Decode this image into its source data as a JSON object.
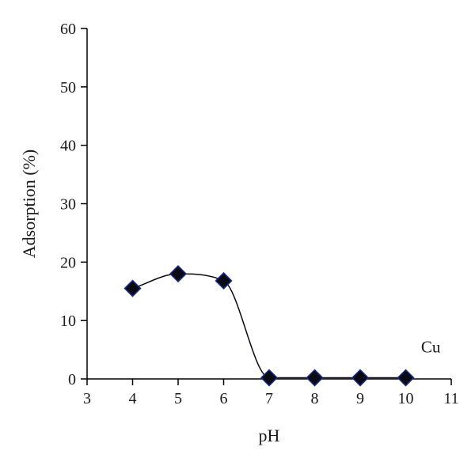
{
  "chart_data": {
    "type": "line",
    "title": "",
    "xlabel": "pH",
    "ylabel": "Adsorption (%)",
    "xlim": [
      3,
      11
    ],
    "ylim": [
      0,
      60
    ],
    "x_ticks": [
      3,
      4,
      5,
      6,
      7,
      8,
      9,
      10,
      11
    ],
    "y_ticks": [
      0,
      10,
      20,
      30,
      40,
      50,
      60
    ],
    "grid": false,
    "legend": "none",
    "marker": "diamond",
    "smooth": true,
    "series": [
      {
        "x": [
          4,
          5,
          6,
          7,
          8,
          9,
          10
        ],
        "y": [
          15.5,
          18.0,
          16.8,
          0.2,
          0.2,
          0.2,
          0.2
        ],
        "color": "#0a0a14",
        "marker_edge_color": "#1c2a8a"
      }
    ],
    "annotations": [
      {
        "text": "Cu",
        "x": 10.55,
        "y": 5.5
      }
    ]
  }
}
